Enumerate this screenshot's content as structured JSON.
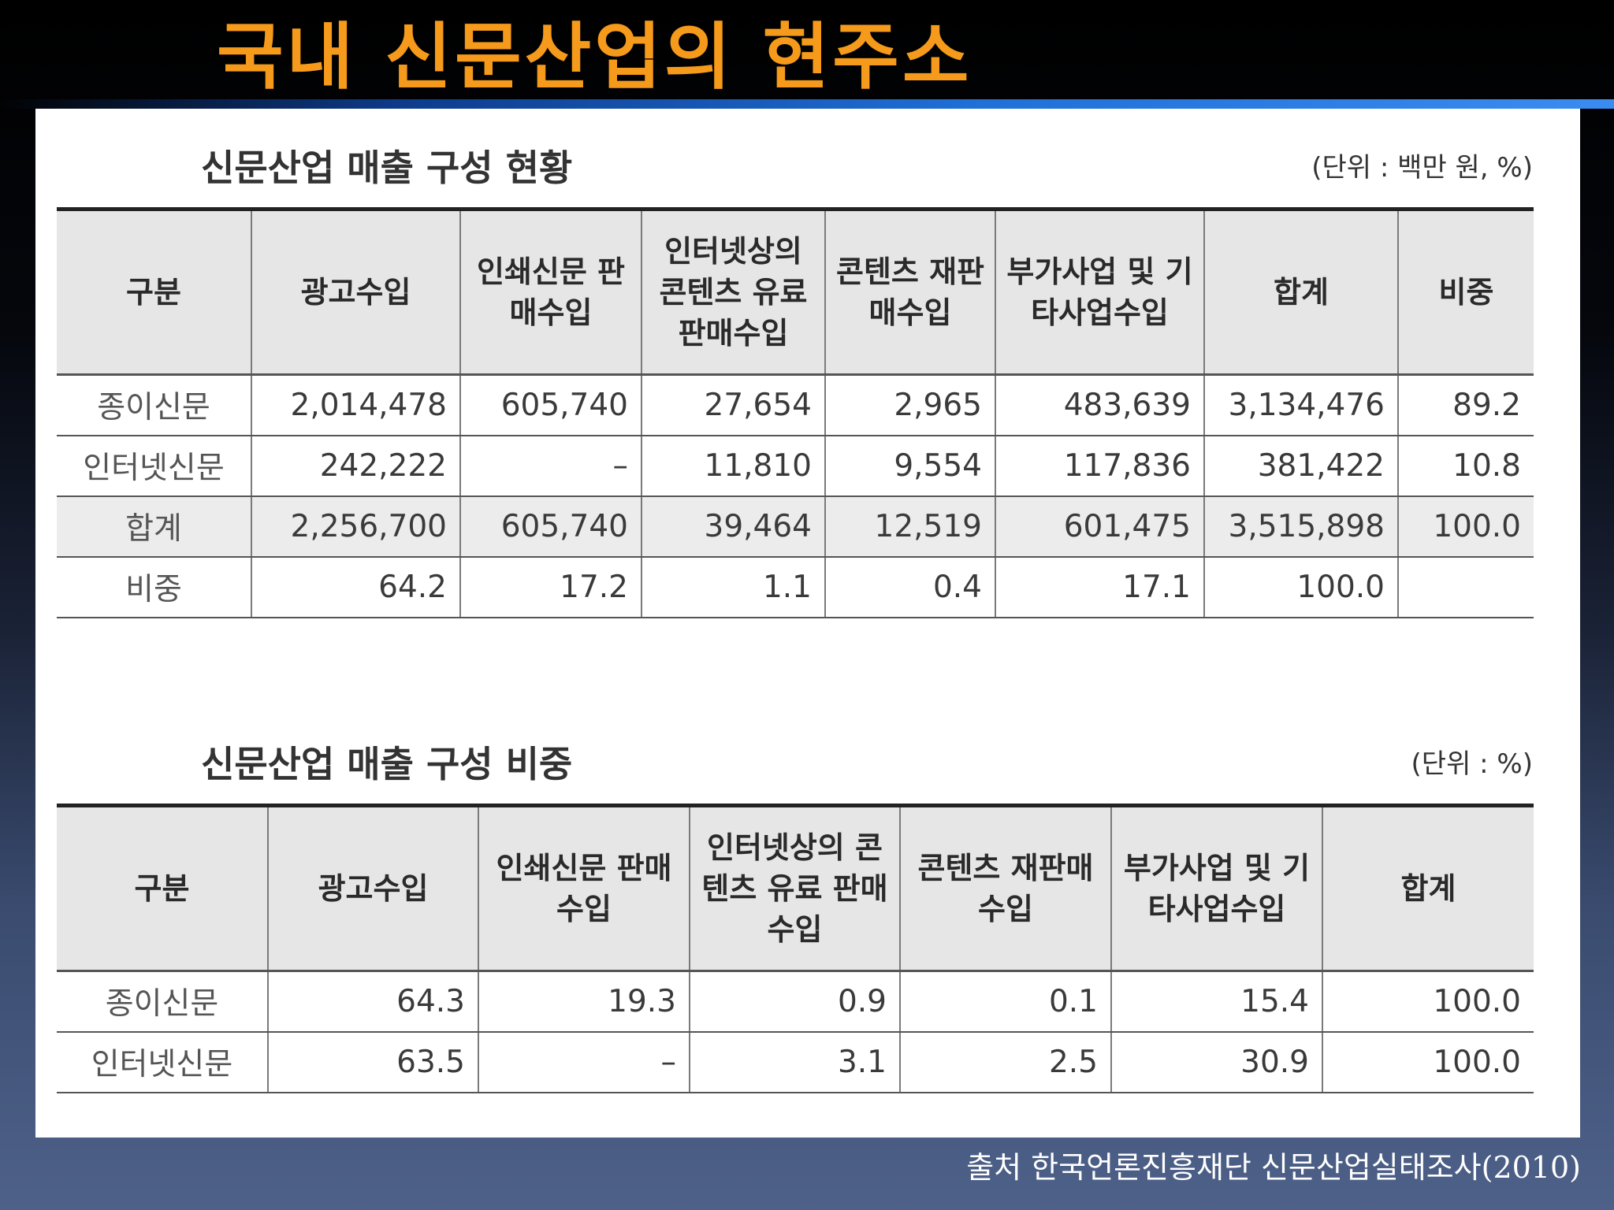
{
  "slide_title": "국내 신문산업의 현주소",
  "table1": {
    "title": "신문산업 매출 구성 현황",
    "unit": "(단위 : 백만 원, %)",
    "headers": [
      "구분",
      "광고수입",
      "인쇄신문 판매수입",
      "인터넷상의 콘텐츠 유료 판매수입",
      "콘텐츠 재판매수입",
      "부가사업 및 기타사업수입",
      "합계",
      "비중"
    ],
    "rows": [
      [
        "종이신문",
        "2,014,478",
        "605,740",
        "27,654",
        "2,965",
        "483,639",
        "3,134,476",
        "89.2"
      ],
      [
        "인터넷신문",
        "242,222",
        "–",
        "11,810",
        "9,554",
        "117,836",
        "381,422",
        "10.8"
      ],
      [
        "합계",
        "2,256,700",
        "605,740",
        "39,464",
        "12,519",
        "601,475",
        "3,515,898",
        "100.0"
      ],
      [
        "비중",
        "64.2",
        "17.2",
        "1.1",
        "0.4",
        "17.1",
        "100.0",
        ""
      ]
    ]
  },
  "table2": {
    "title": "신문산업 매출 구성 비중",
    "unit": "(단위 :   %)",
    "headers": [
      "구분",
      "광고수입",
      "인쇄신문 판매수입",
      "인터넷상의 콘텐츠 유료 판매수입",
      "콘텐츠 재판매수입",
      "부가사업 및 기타사업수입",
      "합계"
    ],
    "rows": [
      [
        "종이신문",
        "64.3",
        "19.3",
        "0.9",
        "0.1",
        "15.4",
        "100.0"
      ],
      [
        "인터넷신문",
        "63.5",
        "–",
        "3.1",
        "2.5",
        "30.9",
        "100.0"
      ]
    ]
  },
  "source": "출처 한국언론진흥재단 신문산업실태조사(2010)"
}
